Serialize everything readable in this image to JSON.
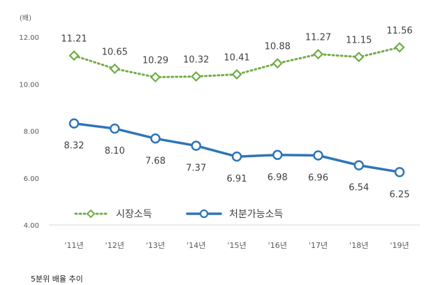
{
  "chart_data": {
    "type": "line",
    "unit_label": "(배)",
    "categories": [
      "'11년",
      "'12년",
      "'13년",
      "'14년",
      "'15년",
      "'16년",
      "'17년",
      "'18년",
      "'19년"
    ],
    "series": [
      {
        "name": "시장소득",
        "values": [
          11.21,
          10.65,
          10.29,
          10.32,
          10.41,
          10.88,
          11.27,
          11.15,
          11.56
        ],
        "labels": [
          "11.21",
          "10.65",
          "10.29",
          "10.32",
          "10.41",
          "10.88",
          "11.27",
          "11.15",
          "11.56"
        ],
        "color": "#70ad47",
        "style": "dotted",
        "marker": "diamond"
      },
      {
        "name": "처분가능소득",
        "values": [
          8.32,
          8.1,
          7.68,
          7.37,
          6.91,
          6.98,
          6.96,
          6.54,
          6.25
        ],
        "labels": [
          "8.32",
          "8.10",
          "7.68",
          "7.37",
          "6.91",
          "6.98",
          "6.96",
          "6.54",
          "6.25"
        ],
        "color": "#2e75b6",
        "style": "solid",
        "marker": "circle"
      }
    ],
    "y_ticks": [
      "4.00",
      "6.00",
      "8.00",
      "10.00",
      "12.00"
    ],
    "ylim": [
      4,
      12
    ],
    "grid": false,
    "legend_position": "bottom-center"
  },
  "caption": "5분위 배율 추이"
}
